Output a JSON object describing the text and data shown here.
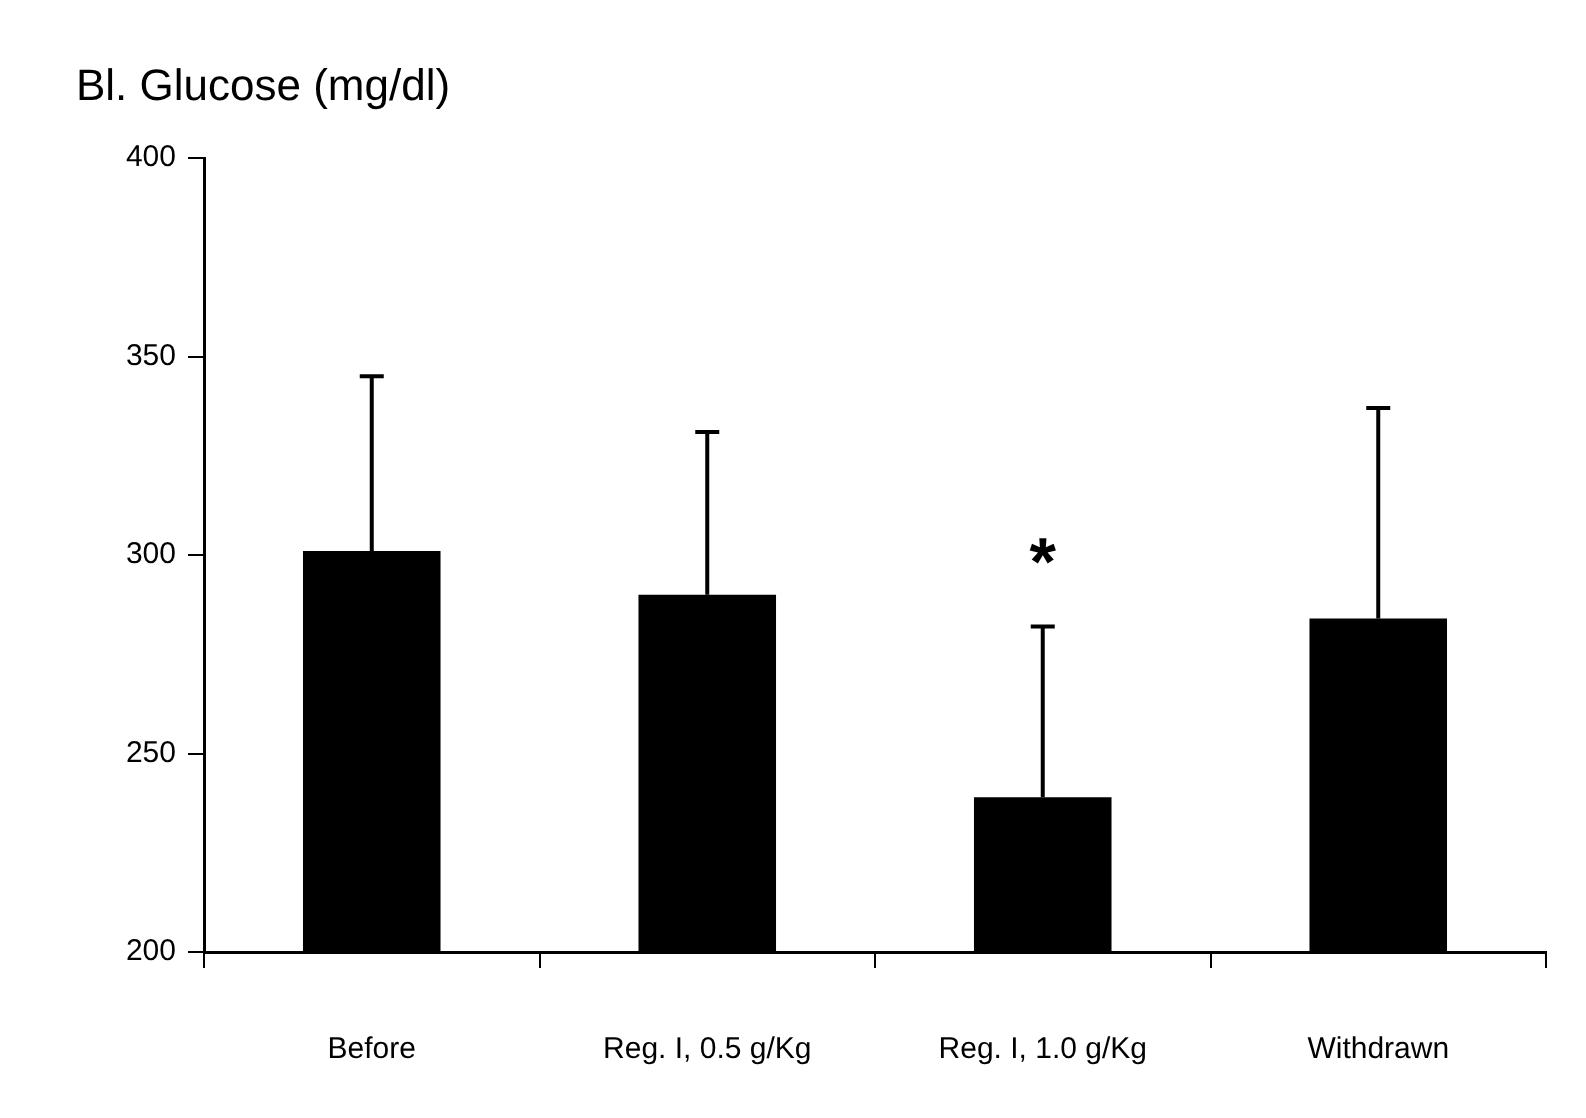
{
  "chart_data": {
    "type": "bar",
    "title": "Bl. Glucose (mg/dl)",
    "categories": [
      "Before",
      "Reg. I, 0.5 g/Kg",
      "Reg. I, 1.0 g/Kg",
      "Withdrawn"
    ],
    "values": [
      301,
      290,
      239,
      284
    ],
    "errors": [
      [
        301,
        345
      ],
      [
        290,
        331
      ],
      [
        239,
        282
      ],
      [
        284,
        337
      ]
    ],
    "color": "#000000",
    "ylim": [
      200,
      400
    ],
    "yticks": [
      200,
      250,
      300,
      350,
      400
    ],
    "grid": false,
    "annotations": [
      "*"
    ]
  }
}
